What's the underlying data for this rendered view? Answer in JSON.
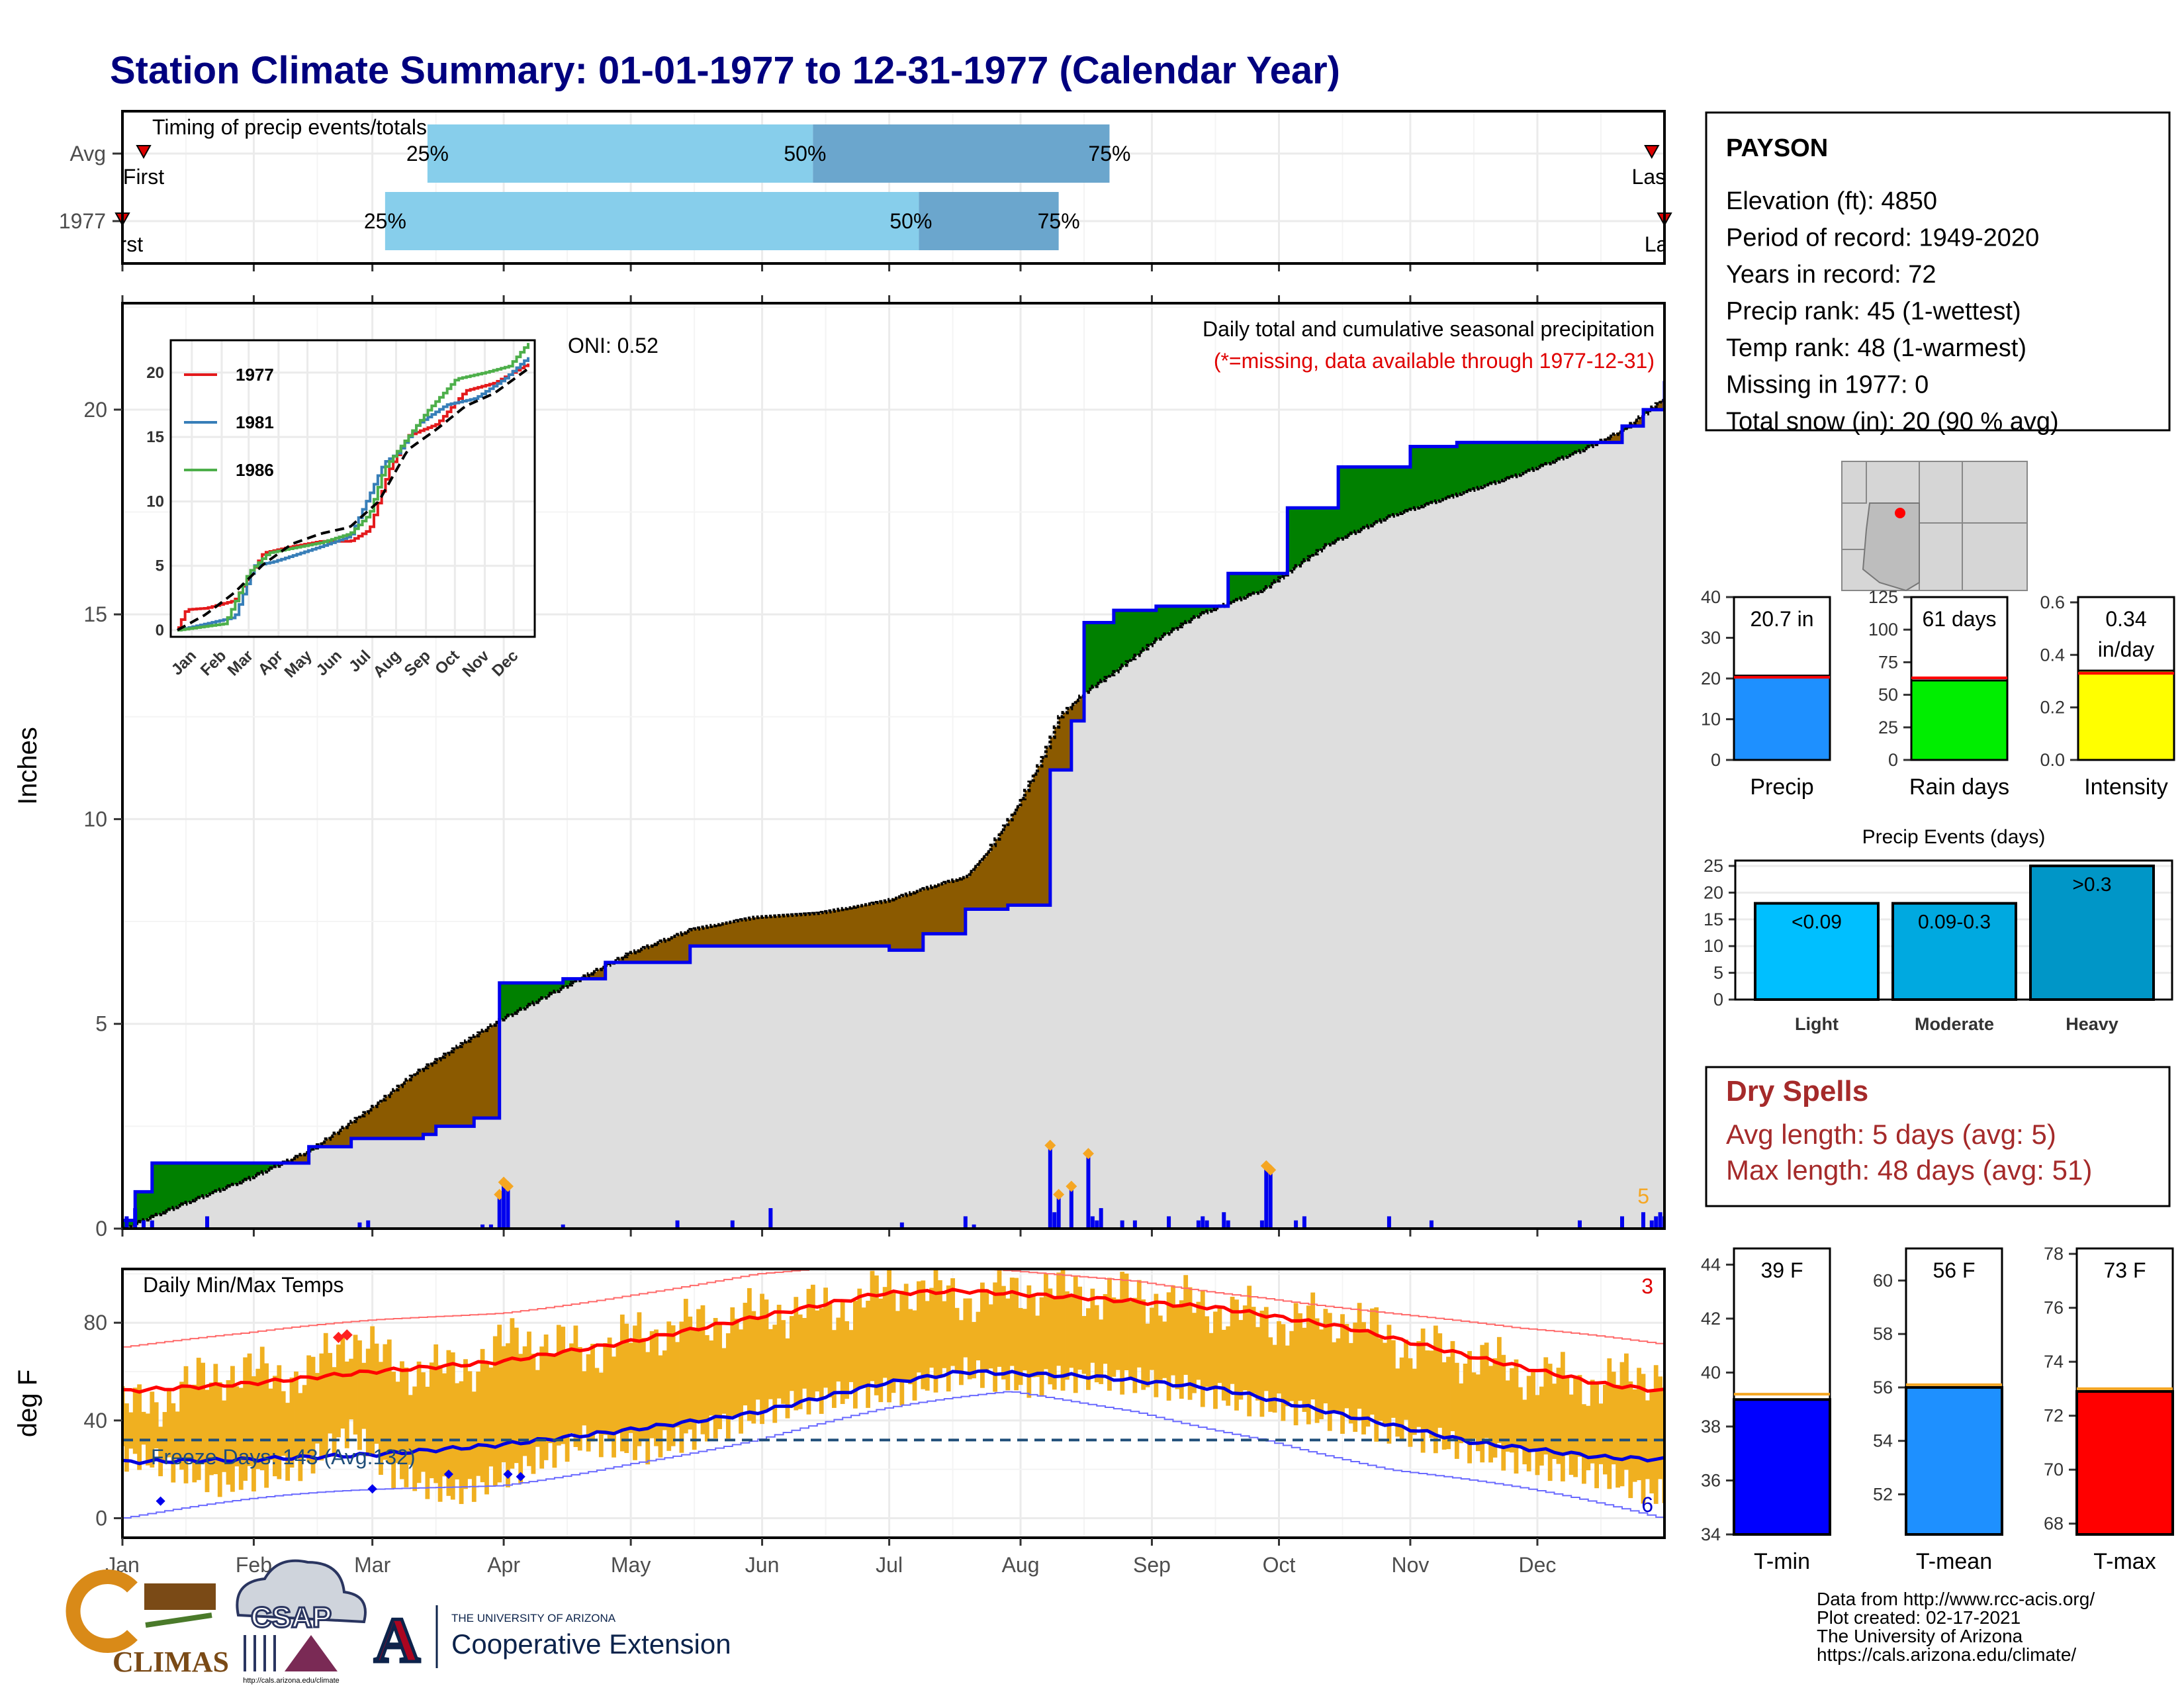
{
  "title": "Station Climate Summary: 01-01-1977 to 12-31-1977 (Calendar Year)",
  "months": [
    "Jan",
    "Feb",
    "Mar",
    "Apr",
    "May",
    "Jun",
    "Jul",
    "Aug",
    "Sep",
    "Oct",
    "Nov",
    "Dec"
  ],
  "timing": {
    "label": "Timing of precip events/totals",
    "rows": [
      {
        "name": "Avg",
        "first_label": "First",
        "last_label": "Last",
        "first_day": 6,
        "last_day": 362,
        "p25_label": "25%",
        "p50_label": "50%",
        "p75_label": "75%",
        "p25": 73,
        "p50": 164,
        "p75": 234
      },
      {
        "name": "1977",
        "first_label": "First",
        "last_label": "Last",
        "first_day": 1,
        "last_day": 365,
        "p25_label": "25%",
        "p50_label": "50%",
        "p75_label": "75%",
        "p25": 63,
        "p50": 189,
        "p75": 222
      }
    ]
  },
  "precip": {
    "ylabel": "Inches",
    "caption": "Daily total and cumulative seasonal precipitation",
    "missing_note": "(*=missing, data available through 1977-12-31)",
    "oni_label": "ONI: 0.52",
    "corner_count": "5",
    "yticks": [
      0,
      5,
      10,
      15,
      20
    ],
    "ylim": [
      0,
      22.6
    ]
  },
  "inset": {
    "yticks": [
      0,
      5,
      10,
      15,
      20
    ],
    "legend": [
      {
        "name": "1977",
        "color": "#e41a1c"
      },
      {
        "name": "1981",
        "color": "#377eb8"
      },
      {
        "name": "1986",
        "color": "#4daf4a"
      }
    ]
  },
  "station": {
    "name": "PAYSON",
    "lines": [
      "Elevation (ft): 4850",
      "Period of record: 1949-2020",
      "Years in record: 72",
      "Precip rank: 45 (1-wettest)",
      "Temp rank: 48 (1-warmest)",
      "Missing in 1977: 0",
      "Total snow (in): 20 (90 % avg)"
    ]
  },
  "summary_bars": [
    {
      "name": "Precip",
      "value_label": "20.7 in",
      "value": 20.7,
      "avg": 20.3,
      "ymax": 40,
      "ticks": [
        0,
        10,
        20,
        30,
        40
      ],
      "color": "#1e90ff"
    },
    {
      "name": "Rain days",
      "value_label": "61 days",
      "value": 61,
      "avg": 63,
      "ymax": 125,
      "ticks": [
        0,
        25,
        50,
        75,
        100,
        125
      ],
      "color": "#00ee00"
    },
    {
      "name": "Intensity",
      "value_label": "0.34",
      "value_label2": "in/day",
      "value": 0.34,
      "avg": 0.33,
      "ymax": 0.62,
      "ticks": [
        0.0,
        0.2,
        0.4,
        0.6
      ],
      "color": "#ffff00"
    }
  ],
  "events": {
    "title": "Precip Events (days)",
    "ymax": 26,
    "ticks": [
      0,
      5,
      10,
      15,
      20,
      25
    ],
    "bars": [
      {
        "name": "Light",
        "label": "<0.09",
        "value": 18,
        "color": "#00bfff"
      },
      {
        "name": "Moderate",
        "label": "0.09-0.3",
        "value": 18,
        "color": "#00a9e0"
      },
      {
        "name": "Heavy",
        "label": ">0.3",
        "value": 25,
        "color": "#0096c7"
      }
    ]
  },
  "dry_spells": {
    "title": "Dry Spells",
    "avg_line": "Avg length: 5 days (avg: 5)",
    "max_line": "Max length: 48 days (avg: 51)"
  },
  "temps": {
    "ylabel": "deg F",
    "label": "Daily Min/Max Temps",
    "corner_top": "3",
    "corner_bottom": "6",
    "freeze_label": "Freeze Days: 143 (Avg:132)",
    "freeze_line": 32,
    "yticks": [
      0,
      40,
      80
    ],
    "ylim": [
      -8,
      102
    ]
  },
  "temp_bars": [
    {
      "name": "T-min",
      "value_label": "39 F",
      "value": 39.0,
      "avg": 39.2,
      "ymin": 34,
      "ymax": 44.6,
      "ticks": [
        34,
        36,
        38,
        40,
        42,
        44
      ],
      "color": "#0000ff"
    },
    {
      "name": "T-mean",
      "value_label": "56 F",
      "value": 56.0,
      "avg": 56.1,
      "ymin": 50.5,
      "ymax": 61.2,
      "ticks": [
        52,
        54,
        56,
        58,
        60
      ],
      "color": "#1e90ff"
    },
    {
      "name": "T-max",
      "value_label": "73 F",
      "value": 72.9,
      "avg": 73.0,
      "ymin": 67.6,
      "ymax": 78.2,
      "ticks": [
        68,
        70,
        72,
        74,
        76,
        78
      ],
      "color": "#ff0000"
    }
  ],
  "footer": {
    "lines": [
      "Data from http://www.rcc-acis.org/",
      "Plot created: 02-17-2021",
      "The University of Arizona",
      "https://cals.arizona.edu/climate/"
    ],
    "logo_climas": "CLIMAS",
    "logo_csap": "CSAP",
    "logo_csap_url": "http://cals.arizona.edu/climate",
    "ua_small": "THE UNIVERSITY OF ARIZONA",
    "ua_big": "Cooperative Extension",
    "ua_letter": "A"
  },
  "chart_data": [
    {
      "type": "area",
      "title": "Daily total and cumulative seasonal precipitation",
      "ylabel": "Inches",
      "x_unit": "day of year 1977",
      "ylim": [
        0,
        22.6
      ],
      "series": [
        {
          "name": "1977",
          "x": [
            1,
            4,
            8,
            23,
            45,
            55,
            60,
            72,
            75,
            84,
            90,
            105,
            115,
            125,
            135,
            145,
            155,
            165,
            175,
            182,
            190,
            200,
            210,
            220,
            225,
            228,
            235,
            240,
            245,
            262,
            269,
            276,
            288,
            296,
            305,
            316,
            326,
            336,
            345,
            350,
            355,
            360,
            365
          ],
          "y": [
            0.2,
            0.9,
            1.6,
            1.6,
            2.0,
            2.2,
            2.2,
            2.3,
            2.5,
            2.7,
            6.0,
            6.1,
            6.5,
            6.5,
            6.9,
            6.9,
            6.9,
            6.9,
            6.9,
            6.8,
            7.2,
            7.8,
            7.9,
            11.2,
            12.4,
            14.8,
            15.1,
            15.1,
            15.2,
            16.0,
            16.0,
            17.6,
            18.6,
            18.6,
            19.1,
            19.2,
            19.2,
            19.2,
            19.2,
            19.2,
            19.6,
            20.0,
            20.7
          ]
        },
        {
          "name": "Avg",
          "x": [
            1,
            15,
            30,
            45,
            59,
            70,
            90,
            105,
            120,
            135,
            150,
            165,
            181,
            190,
            200,
            205,
            212,
            218,
            222,
            228,
            235,
            245,
            255,
            270,
            285,
            300,
            315,
            330,
            345,
            355,
            365
          ],
          "y": [
            0.0,
            0.6,
            1.2,
            1.9,
            2.9,
            3.8,
            5.1,
            5.9,
            6.7,
            7.3,
            7.6,
            7.7,
            8.0,
            8.3,
            8.6,
            9.2,
            10.3,
            11.5,
            12.5,
            13.1,
            13.6,
            14.4,
            15.0,
            15.6,
            16.7,
            17.4,
            17.9,
            18.4,
            19.0,
            19.5,
            20.3
          ]
        },
        {
          "name": "Daily precip (1977)",
          "x": [
            2,
            4,
            6,
            8,
            21,
            57,
            59,
            86,
            88,
            90,
            91,
            92,
            105,
            132,
            145,
            154,
            185,
            200,
            202,
            220,
            221,
            222,
            225,
            229,
            230,
            231,
            232,
            237,
            240,
            248,
            255,
            256,
            257,
            261,
            262,
            270,
            271,
            272,
            278,
            280,
            300,
            310,
            345,
            355,
            360,
            362,
            363,
            364,
            365
          ],
          "y": [
            0.3,
            0.5,
            0.2,
            0.2,
            0.3,
            0.15,
            0.2,
            0.1,
            0.1,
            0.8,
            1.1,
            1.0,
            0.1,
            0.2,
            0.2,
            0.5,
            0.15,
            0.3,
            0.1,
            2.0,
            0.4,
            0.8,
            1.0,
            1.8,
            0.3,
            0.2,
            0.5,
            0.2,
            0.2,
            0.3,
            0.2,
            0.3,
            0.2,
            0.4,
            0.2,
            0.2,
            1.5,
            1.4,
            0.2,
            0.3,
            0.3,
            0.2,
            0.2,
            0.3,
            0.4,
            0.2,
            0.3,
            0.4,
            0.3
          ]
        }
      ]
    },
    {
      "type": "line",
      "title": "",
      "x_unit": "day of year",
      "ylim": [
        0,
        22
      ],
      "series": [
        {
          "name": "1977",
          "x": [
            1,
            10,
            30,
            60,
            90,
            120,
            150,
            180,
            200,
            220,
            240,
            270,
            300,
            330,
            365
          ],
          "y": [
            0.2,
            1.6,
            1.7,
            2.3,
            6.0,
            6.5,
            6.9,
            6.9,
            7.8,
            12.4,
            15.1,
            16.0,
            18.6,
            19.2,
            20.7
          ]
        },
        {
          "name": "1981",
          "x": [
            1,
            60,
            80,
            100,
            150,
            180,
            200,
            215,
            230,
            250,
            280,
            310,
            340,
            365
          ],
          "y": [
            0.0,
            1.0,
            5.0,
            5.3,
            6.5,
            7.3,
            10.5,
            13.0,
            13.8,
            16.0,
            17.5,
            18.0,
            19.5,
            21.2
          ]
        },
        {
          "name": "1986",
          "x": [
            1,
            50,
            75,
            95,
            150,
            180,
            200,
            215,
            235,
            260,
            290,
            320,
            345,
            365
          ],
          "y": [
            0.0,
            0.5,
            4.5,
            6.0,
            6.8,
            7.5,
            9.0,
            12.5,
            14.5,
            17.0,
            19.5,
            20.0,
            20.5,
            22.3
          ]
        },
        {
          "name": "Avg",
          "x": [
            1,
            30,
            60,
            90,
            120,
            150,
            180,
            210,
            240,
            270,
            300,
            330,
            365
          ],
          "y": [
            0.0,
            1.2,
            2.9,
            5.1,
            6.7,
            7.5,
            8.0,
            10.0,
            14.0,
            15.6,
            17.4,
            18.4,
            20.3
          ]
        }
      ]
    },
    {
      "type": "line",
      "title": "Daily Min/Max Temps",
      "ylabel": "deg F",
      "x_unit": "day of year 1977",
      "ylim": [
        -8,
        102
      ],
      "series": [
        {
          "name": "Avg max",
          "x": [
            1,
            30,
            60,
            90,
            120,
            150,
            180,
            200,
            230,
            260,
            290,
            320,
            350,
            365
          ],
          "y": [
            52,
            55,
            60,
            64,
            72,
            82,
            92,
            93,
            90,
            86,
            78,
            66,
            55,
            52
          ]
        },
        {
          "name": "Avg min",
          "x": [
            1,
            30,
            60,
            90,
            120,
            150,
            180,
            200,
            230,
            260,
            290,
            320,
            350,
            365
          ],
          "y": [
            23,
            24,
            26,
            30,
            36,
            43,
            55,
            60,
            58,
            53,
            42,
            31,
            25,
            24
          ]
        },
        {
          "name": "Record high",
          "x": [
            1,
            30,
            60,
            90,
            120,
            150,
            180,
            210,
            240,
            270,
            300,
            330,
            365
          ],
          "y": [
            70,
            74,
            80,
            85,
            93,
            100,
            102,
            100,
            98,
            92,
            84,
            76,
            70
          ]
        },
        {
          "name": "Record low",
          "x": [
            1,
            30,
            60,
            90,
            120,
            150,
            180,
            210,
            240,
            270,
            300,
            330,
            365
          ],
          "y": [
            0,
            5,
            10,
            15,
            25,
            32,
            42,
            50,
            45,
            35,
            20,
            10,
            -2
          ]
        },
        {
          "name": "Daily max 1977",
          "x": [
            5,
            25,
            45,
            55,
            65,
            80,
            95,
            110,
            125,
            140,
            155,
            170,
            185,
            200,
            215,
            230,
            245,
            260,
            275,
            290,
            305,
            320,
            335,
            350,
            363
          ],
          "y": [
            45,
            60,
            58,
            75,
            62,
            60,
            74,
            68,
            76,
            80,
            85,
            86,
            95,
            90,
            94,
            92,
            90,
            86,
            80,
            82,
            70,
            66,
            58,
            55,
            60
          ]
        },
        {
          "name": "Daily min 1977",
          "x": [
            5,
            25,
            45,
            55,
            65,
            80,
            95,
            110,
            125,
            140,
            155,
            170,
            185,
            200,
            215,
            230,
            245,
            260,
            275,
            290,
            305,
            320,
            335,
            350,
            363
          ],
          "y": [
            25,
            14,
            22,
            36,
            18,
            10,
            20,
            32,
            28,
            36,
            45,
            50,
            52,
            60,
            55,
            58,
            55,
            50,
            45,
            40,
            34,
            28,
            22,
            18,
            10
          ]
        }
      ]
    },
    {
      "type": "bar",
      "categories": [
        "Precip",
        "Rain days",
        "Intensity"
      ],
      "series": [
        {
          "name": "1977",
          "values": [
            20.7,
            61,
            0.34
          ]
        },
        {
          "name": "Avg",
          "values": [
            20.3,
            63,
            0.33
          ]
        }
      ]
    },
    {
      "type": "bar",
      "title": "Precip Events (days)",
      "categories": [
        "Light",
        "Moderate",
        "Heavy"
      ],
      "values": [
        18,
        18,
        25
      ],
      "ylim": [
        0,
        26
      ]
    },
    {
      "type": "bar",
      "categories": [
        "T-min",
        "T-mean",
        "T-max"
      ],
      "series": [
        {
          "name": "1977",
          "values": [
            39.0,
            56.0,
            72.9
          ]
        },
        {
          "name": "Avg",
          "values": [
            39.2,
            56.1,
            73.0
          ]
        }
      ]
    }
  ]
}
